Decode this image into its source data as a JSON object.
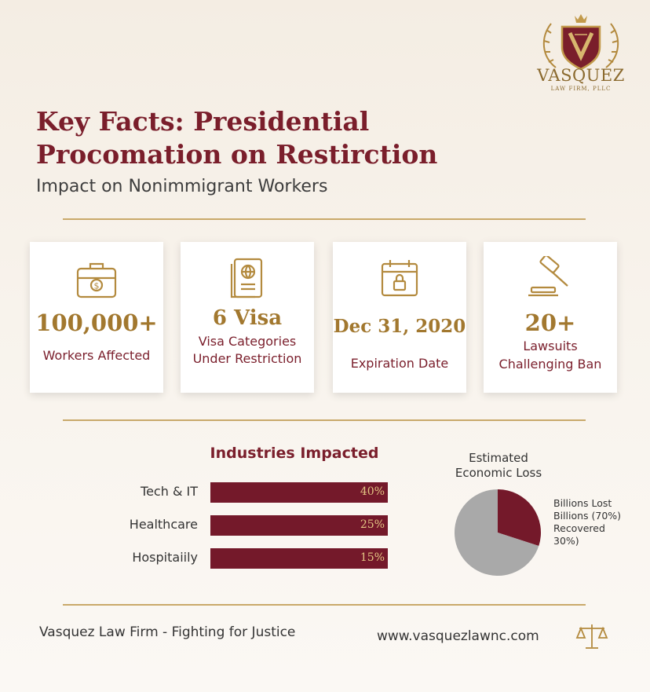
{
  "brand": {
    "name": "VASQUEZ",
    "sub": "LAW FIRM, PLLC",
    "gold": "#a2782f",
    "maroon": "#7a1e2b"
  },
  "header": {
    "title_line1": "Key Facts: Presidential",
    "title_line2": "Procomation on Restirction",
    "subtitle": "Impact on Nonimmigrant Workers"
  },
  "stats": [
    {
      "icon": "briefcase-dollar-icon",
      "value": "100,000+",
      "label_line1": "Workers Affected",
      "label_line2": ""
    },
    {
      "icon": "passport-icon",
      "value": "6 Visa",
      "label_line1": "Visa Categories",
      "label_line2": "Under Restriction"
    },
    {
      "icon": "calendar-lock-icon",
      "value": "Dec 31, 2020",
      "label_line1": "Expiration Date",
      "label_line2": ""
    },
    {
      "icon": "gavel-icon",
      "value": "20+",
      "label_line1": "Lawsuits",
      "label_line2": "Challenging Ban"
    }
  ],
  "chart_data": [
    {
      "type": "bar",
      "title": "Industries Impacted",
      "categories": [
        "Tech & IT",
        "Healthcare",
        "Hospitaiily"
      ],
      "values": [
        40,
        25,
        15
      ],
      "value_labels": [
        "40%",
        "25%",
        "15%"
      ],
      "orientation": "horizontal"
    },
    {
      "type": "pie",
      "title_line1": "Estimated",
      "title_line2": "Economic Loss",
      "slices": [
        {
          "value": 30,
          "color": "#74192a"
        },
        {
          "value": 70,
          "color": "#a9a9a9"
        }
      ],
      "legend_lines": [
        "Billions Lost",
        "Billions (70%)",
        "Recovered",
        "30%)"
      ],
      "legend_placement": "right"
    }
  ],
  "footer": {
    "tagline": "Vasquez Law Firm - Fighting for Justice",
    "url": "www.vasquezlawnc.com",
    "icon": "scales-of-justice-icon"
  }
}
